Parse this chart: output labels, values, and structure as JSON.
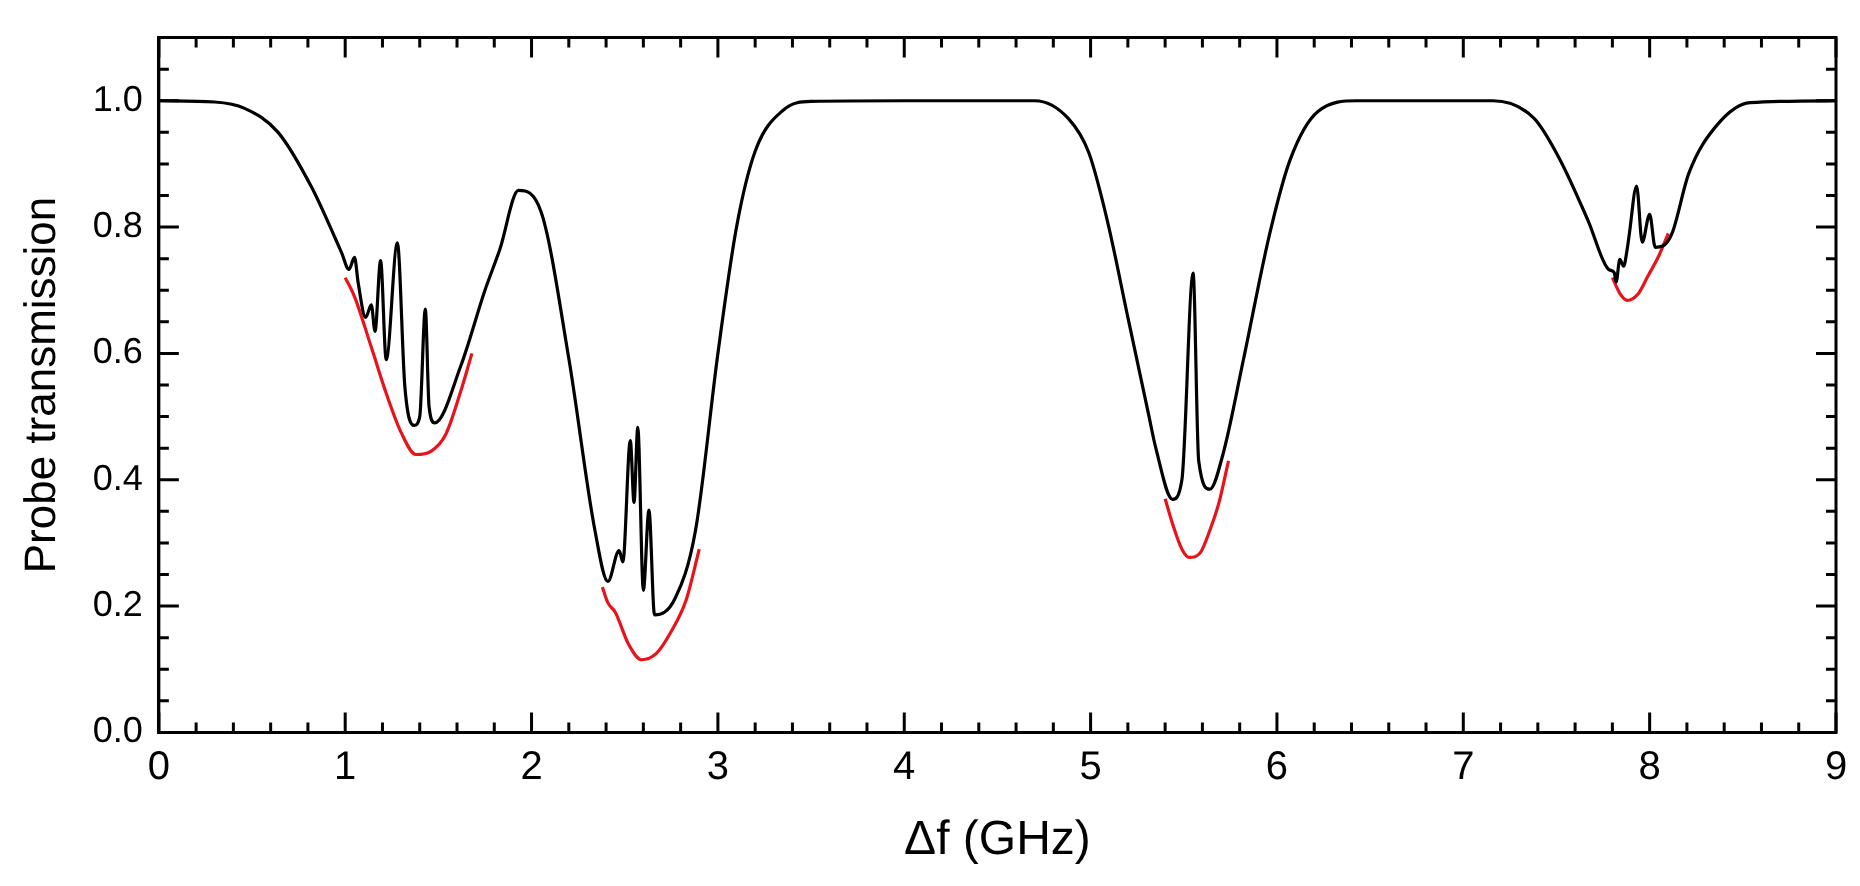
{
  "chart_data": {
    "type": "line",
    "xlabel": "Δf (GHz)",
    "ylabel": "Probe transmission",
    "xlim": [
      0,
      9
    ],
    "ylim": [
      0,
      1.1
    ],
    "xticks": [
      0,
      {
        "value": 0.2,
        "label": null
      },
      {
        "value": 0.4,
        "label": null
      },
      {
        "value": 0.6,
        "label": null
      },
      {
        "value": 0.8,
        "label": null
      },
      1,
      {
        "value": 1.2,
        "label": null
      },
      {
        "value": 1.4,
        "label": null
      },
      {
        "value": 1.6,
        "label": null
      },
      {
        "value": 1.8,
        "label": null
      },
      2,
      {
        "value": 2.2,
        "label": null
      },
      {
        "value": 2.4,
        "label": null
      },
      {
        "value": 2.6,
        "label": null
      },
      {
        "value": 2.8,
        "label": null
      },
      3,
      {
        "value": 3.2,
        "label": null
      },
      {
        "value": 3.4,
        "label": null
      },
      {
        "value": 3.6,
        "label": null
      },
      {
        "value": 3.8,
        "label": null
      },
      4,
      {
        "value": 4.2,
        "label": null
      },
      {
        "value": 4.4,
        "label": null
      },
      {
        "value": 4.6,
        "label": null
      },
      {
        "value": 4.8,
        "label": null
      },
      5,
      {
        "value": 5.2,
        "label": null
      },
      {
        "value": 5.4,
        "label": null
      },
      {
        "value": 5.6,
        "label": null
      },
      {
        "value": 5.8,
        "label": null
      },
      6,
      {
        "value": 6.2,
        "label": null
      },
      {
        "value": 6.4,
        "label": null
      },
      {
        "value": 6.6,
        "label": null
      },
      {
        "value": 6.8,
        "label": null
      },
      7,
      {
        "value": 7.2,
        "label": null
      },
      {
        "value": 7.4,
        "label": null
      },
      {
        "value": 7.6,
        "label": null
      },
      {
        "value": 7.8,
        "label": null
      },
      8,
      {
        "value": 8.2,
        "label": null
      },
      {
        "value": 8.4,
        "label": null
      },
      {
        "value": 8.6,
        "label": null
      },
      {
        "value": 8.8,
        "label": null
      },
      9
    ],
    "yticks": [
      {
        "value": 0,
        "label": "0.0"
      },
      {
        "value": 0.05,
        "label": null
      },
      {
        "value": 0.1,
        "label": null
      },
      {
        "value": 0.15,
        "label": null
      },
      0.2,
      {
        "value": 0.25,
        "label": null
      },
      {
        "value": 0.3,
        "label": null
      },
      {
        "value": 0.35,
        "label": null
      },
      0.4,
      {
        "value": 0.45,
        "label": null
      },
      {
        "value": 0.5,
        "label": null
      },
      {
        "value": 0.55,
        "label": null
      },
      0.6,
      {
        "value": 0.65,
        "label": null
      },
      {
        "value": 0.7,
        "label": null
      },
      {
        "value": 0.75,
        "label": null
      },
      0.8,
      {
        "value": 0.85,
        "label": null
      },
      {
        "value": 0.9,
        "label": null
      },
      {
        "value": 0.95,
        "label": null
      },
      {
        "value": 1,
        "label": "1.0"
      },
      {
        "value": 1.05,
        "label": null
      }
    ],
    "grid": false,
    "legend": false,
    "series": [
      {
        "color": "#e8141c",
        "x": [
          1.0,
          1.05,
          1.14,
          1.22,
          1.3,
          1.38,
          1.46,
          1.54,
          1.62,
          1.68
        ],
        "values": [
          0.72,
          0.69,
          0.61,
          0.537,
          0.475,
          0.44,
          0.445,
          0.472,
          0.54,
          0.6
        ]
      },
      {
        "color": "#e8141c",
        "x": [
          2.38,
          2.41,
          2.45,
          2.52,
          2.59,
          2.67,
          2.75,
          2.83,
          2.9
        ],
        "values": [
          0.23,
          0.205,
          0.19,
          0.14,
          0.115,
          0.125,
          0.16,
          0.21,
          0.29
        ]
      },
      {
        "color": "#e8141c",
        "x": [
          5.4,
          5.44,
          5.49,
          5.53,
          5.59,
          5.64,
          5.69,
          5.74
        ],
        "values": [
          0.37,
          0.33,
          0.29,
          0.277,
          0.285,
          0.32,
          0.365,
          0.43
        ]
      },
      {
        "color": "#e8141c",
        "x": [
          7.8,
          7.84,
          7.88,
          7.94,
          7.99,
          8.05,
          8.1
        ],
        "values": [
          0.72,
          0.695,
          0.684,
          0.695,
          0.722,
          0.755,
          0.79
        ]
      },
      {
        "color": "#000000",
        "x": [
          0,
          0.3,
          0.46,
          0.64,
          0.82,
          0.95,
          0.98,
          1.02,
          1.05,
          1.07,
          1.11,
          1.14,
          1.16,
          1.19,
          1.22,
          1.28,
          1.32,
          1.37,
          1.4,
          1.43,
          1.45,
          1.48,
          1.62,
          1.75,
          1.83,
          1.93,
          2.05,
          2.2,
          2.34,
          2.41,
          2.47,
          2.49,
          2.53,
          2.55,
          2.57,
          2.6,
          2.63,
          2.66,
          2.77,
          2.88,
          3.0,
          3.1,
          3.2,
          3.35,
          3.5,
          4.0,
          4.7,
          4.88,
          4.99,
          5.09,
          5.2,
          5.31,
          5.35,
          5.44,
          5.49,
          5.55,
          5.58,
          5.64,
          5.71,
          5.82,
          5.96,
          6.07,
          6.22,
          6.43,
          7.0,
          7.16,
          7.38,
          7.52,
          7.67,
          7.78,
          7.81,
          7.82,
          7.84,
          7.86,
          7.88,
          7.89,
          7.93,
          7.96,
          8.0,
          8.03,
          8.07,
          8.12,
          8.21,
          8.36,
          8.54,
          9.0
        ],
        "values": [
          1.0,
          0.998,
          0.988,
          0.95,
          0.863,
          0.78,
          0.76,
          0.733,
          0.752,
          0.711,
          0.657,
          0.677,
          0.635,
          0.747,
          0.59,
          0.775,
          0.548,
          0.486,
          0.5,
          0.67,
          0.516,
          0.49,
          0.58,
          0.7,
          0.765,
          0.858,
          0.825,
          0.592,
          0.32,
          0.239,
          0.288,
          0.27,
          0.462,
          0.364,
          0.483,
          0.225,
          0.352,
          0.186,
          0.212,
          0.32,
          0.6,
          0.8,
          0.92,
          0.985,
          0.999,
          1.0,
          1.0,
          0.972,
          0.918,
          0.81,
          0.657,
          0.505,
          0.45,
          0.369,
          0.4,
          0.727,
          0.43,
          0.385,
          0.44,
          0.59,
          0.788,
          0.906,
          0.983,
          1.0,
          1.0,
          1.0,
          0.972,
          0.906,
          0.81,
          0.733,
          0.728,
          0.713,
          0.749,
          0.738,
          0.766,
          0.787,
          0.865,
          0.776,
          0.82,
          0.768,
          0.77,
          0.79,
          0.885,
          0.961,
          0.997,
          1.0
        ]
      }
    ]
  }
}
